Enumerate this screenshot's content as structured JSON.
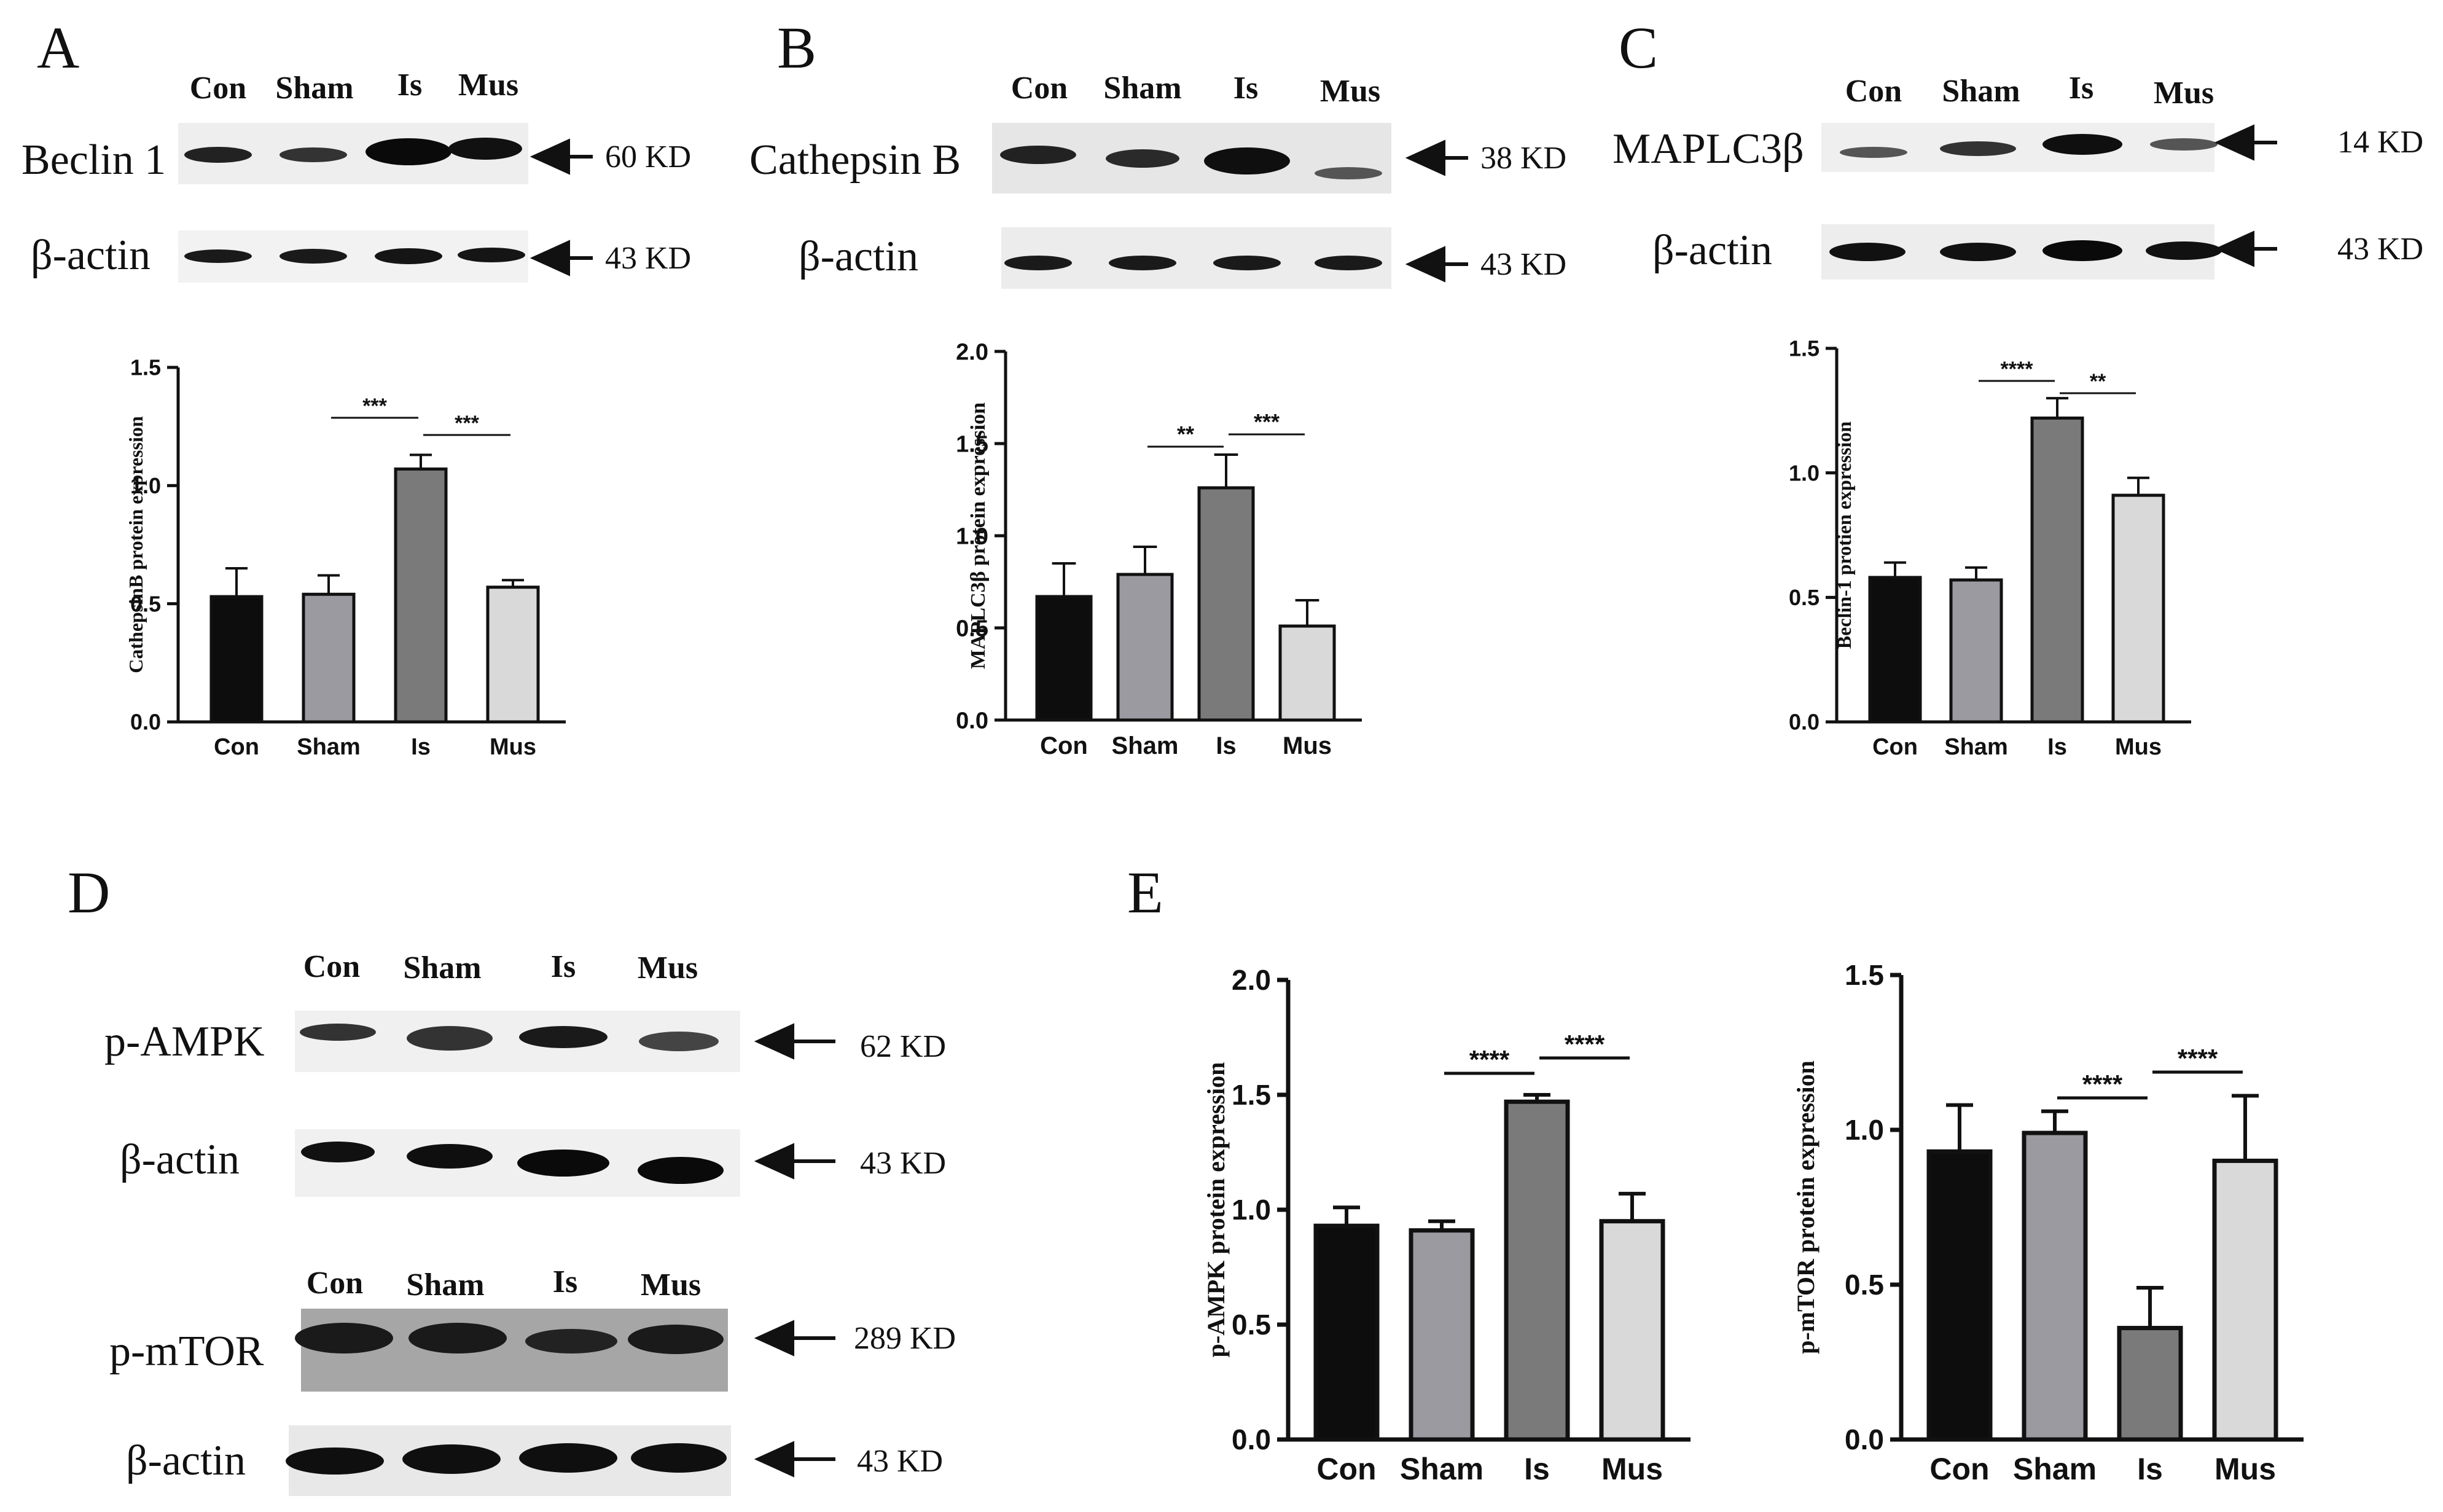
{
  "panels": {
    "A": "A",
    "B": "B",
    "C": "C",
    "D": "D",
    "E": "E"
  },
  "lanes": [
    "Con",
    "Sham",
    "Is",
    "Mus"
  ],
  "blots": {
    "A": [
      {
        "label": "Beclin 1",
        "size": "60 KD"
      },
      {
        "label": "β-actin",
        "size": "43 KD"
      }
    ],
    "B": [
      {
        "label": "Cathepsin B",
        "size": "38 KD"
      },
      {
        "label": "β-actin",
        "size": "43 KD"
      }
    ],
    "C": [
      {
        "label": "MAPLC3β",
        "size": "14 KD"
      },
      {
        "label": "β-actin",
        "size": "43 KD"
      }
    ],
    "D": [
      {
        "label": "p-AMPK",
        "size": "62 KD"
      },
      {
        "label": "β-actin",
        "size": "43 KD"
      },
      {
        "label": "p-mTOR",
        "size": "289 KD"
      },
      {
        "label": "β-actin",
        "size": "43 KD"
      }
    ]
  },
  "colors": {
    "Con": "#0d0d0d",
    "Sham": "#9a9aa0",
    "Is": "#7a7a7a",
    "Mus": "#d9d9d9"
  },
  "chart_data": [
    {
      "type": "bar",
      "panel": "A",
      "categories": [
        "Con",
        "Sham",
        "Is",
        "Mus"
      ],
      "values": [
        0.53,
        0.54,
        1.07,
        0.57
      ],
      "errors": [
        0.12,
        0.08,
        0.06,
        0.03
      ],
      "ylabel": "CathepsinB protein expression",
      "ylim": [
        0,
        1.5
      ],
      "yticks": [
        "0.0",
        "0.5",
        "1.0",
        "1.5"
      ],
      "significance": [
        {
          "from": 1,
          "to": 2,
          "label": "***"
        },
        {
          "from": 2,
          "to": 3,
          "label": "***"
        }
      ]
    },
    {
      "type": "bar",
      "panel": "B",
      "categories": [
        "Con",
        "Sham",
        "Is",
        "Mus"
      ],
      "values": [
        0.67,
        0.79,
        1.26,
        0.51
      ],
      "errors": [
        0.18,
        0.15,
        0.18,
        0.14
      ],
      "ylabel": "MAPLC3β protein expression",
      "ylim": [
        0,
        2.0
      ],
      "yticks": [
        "0.0",
        "0.5",
        "1.0",
        "1.5",
        "2.0"
      ],
      "significance": [
        {
          "from": 1,
          "to": 2,
          "label": "**"
        },
        {
          "from": 2,
          "to": 3,
          "label": "***"
        }
      ]
    },
    {
      "type": "bar",
      "panel": "C",
      "categories": [
        "Con",
        "Sham",
        "Is",
        "Mus"
      ],
      "values": [
        0.58,
        0.57,
        1.22,
        0.91
      ],
      "errors": [
        0.06,
        0.05,
        0.08,
        0.07
      ],
      "ylabel": "Beclin-1 protien expression",
      "ylim": [
        0,
        1.5
      ],
      "yticks": [
        "0.0",
        "0.5",
        "1.0",
        "1.5"
      ],
      "significance": [
        {
          "from": 1,
          "to": 2,
          "label": "****"
        },
        {
          "from": 2,
          "to": 3,
          "label": "**"
        }
      ]
    },
    {
      "type": "bar",
      "panel": "E1",
      "categories": [
        "Con",
        "Sham",
        "Is",
        "Mus"
      ],
      "values": [
        0.93,
        0.91,
        1.47,
        0.95
      ],
      "errors": [
        0.08,
        0.04,
        0.03,
        0.12
      ],
      "ylabel": "p-AMPK protein expression",
      "ylim": [
        0,
        2.0
      ],
      "yticks": [
        "0.0",
        "0.5",
        "1.0",
        "1.5",
        "2.0"
      ],
      "significance": [
        {
          "from": 1,
          "to": 2,
          "label": "****"
        },
        {
          "from": 2,
          "to": 3,
          "label": "****"
        }
      ]
    },
    {
      "type": "bar",
      "panel": "E2",
      "categories": [
        "Con",
        "Sham",
        "Is",
        "Mus"
      ],
      "values": [
        0.93,
        0.99,
        0.36,
        0.9
      ],
      "errors": [
        0.15,
        0.07,
        0.13,
        0.21
      ],
      "ylabel": "p-mTOR protein expression",
      "ylim": [
        0,
        1.5
      ],
      "yticks": [
        "0.0",
        "0.5",
        "1.0",
        "1.5"
      ],
      "significance": [
        {
          "from": 1,
          "to": 2,
          "label": "****"
        },
        {
          "from": 2,
          "to": 3,
          "label": "****"
        }
      ]
    }
  ]
}
